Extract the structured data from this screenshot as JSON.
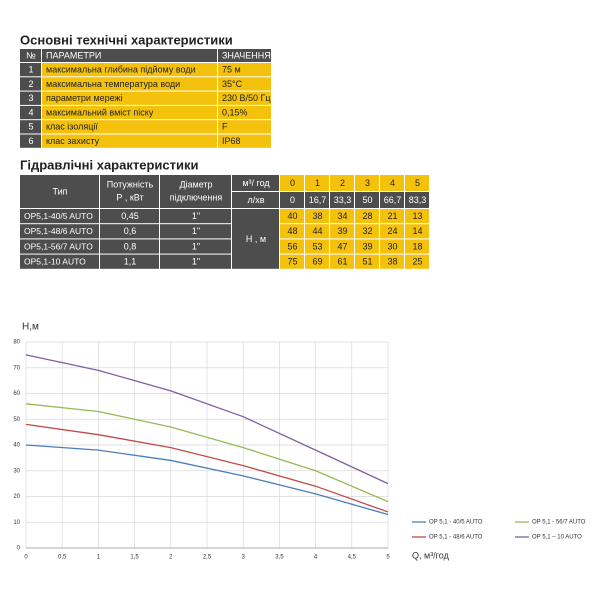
{
  "spec": {
    "title": "Основні технічні характеристики",
    "header": [
      "№",
      "ПАРАМЕТРИ",
      "ЗНАЧЕННЯ"
    ],
    "rows": [
      [
        "1",
        "максимальна глибина підйому води",
        "75 м"
      ],
      [
        "2",
        "максимальна температура води",
        "35°С"
      ],
      [
        "3",
        "параметри мережі",
        "230 В/50 Гц"
      ],
      [
        "4",
        "максимальний вміст піску",
        "0,15%"
      ],
      [
        "5",
        "клас ізоляції",
        "F"
      ],
      [
        "6",
        "клас захисту",
        "IP68"
      ]
    ]
  },
  "hydraulic": {
    "title": "Гідравлічні характеристики",
    "header": {
      "type": "Тип",
      "power": [
        "Потужність",
        "Р , кВт"
      ],
      "diameter": [
        "Діаметр",
        "підключення"
      ],
      "flow_m3": "м³/ год",
      "flow_l": "л/хв",
      "head": "Н , м"
    },
    "flow_m3": [
      "0",
      "1",
      "2",
      "3",
      "4",
      "5"
    ],
    "flow_l": [
      "0",
      "16,7",
      "33,3",
      "50",
      "66,7",
      "83,3"
    ],
    "rows": [
      {
        "type": "OP5,1-40/5 AUTO",
        "power": "0,45",
        "diameter": "1\"",
        "heads": [
          "40",
          "38",
          "34",
          "28",
          "21",
          "13"
        ]
      },
      {
        "type": "OP5,1-48/6 AUTO",
        "power": "0,6",
        "diameter": "1\"",
        "heads": [
          "48",
          "44",
          "39",
          "32",
          "24",
          "14"
        ]
      },
      {
        "type": "OP5,1-56/7 AUTO",
        "power": "0,8",
        "diameter": "1\"",
        "heads": [
          "56",
          "53",
          "47",
          "39",
          "30",
          "18"
        ]
      },
      {
        "type": "OP5,1-10 AUTO",
        "power": "1,1",
        "diameter": "1\"",
        "heads": [
          "75",
          "69",
          "61",
          "51",
          "38",
          "25"
        ]
      }
    ]
  },
  "chart_data": {
    "type": "line",
    "y_label": "H,м",
    "x_label": "Q,  м³/год",
    "x": [
      0,
      1,
      2,
      3,
      4,
      5
    ],
    "series": [
      {
        "name": "OP 5,1 - 40/5 AUTO",
        "color": "#4a7ebb",
        "values": [
          40,
          38,
          34,
          28,
          21,
          13
        ]
      },
      {
        "name": "OP 5,1 - 48/6 AUTO",
        "color": "#be4b48",
        "values": [
          48,
          44,
          39,
          32,
          24,
          14
        ]
      },
      {
        "name": "OP 5,1 - 56/7 AUTO",
        "color": "#98b954",
        "values": [
          56,
          53,
          47,
          39,
          30,
          18
        ]
      },
      {
        "name": "OP 5,1 – 10 AUTO",
        "color": "#7d60a0",
        "values": [
          75,
          69,
          61,
          51,
          38,
          25
        ]
      }
    ],
    "xlim": [
      0,
      5
    ],
    "ylim": [
      0,
      80
    ],
    "xticks": [
      0,
      {
        "value": 0.5,
        "label": "0,5"
      },
      1,
      {
        "value": 1.5,
        "label": "1,5"
      },
      2,
      {
        "value": 2.5,
        "label": "2,5"
      },
      3,
      {
        "value": 3.5,
        "label": "3,5"
      },
      4,
      {
        "value": 4.5,
        "label": "4,5"
      },
      5
    ],
    "yticks": [
      0,
      10,
      20,
      30,
      40,
      50,
      60,
      70,
      80
    ],
    "grid": true
  }
}
